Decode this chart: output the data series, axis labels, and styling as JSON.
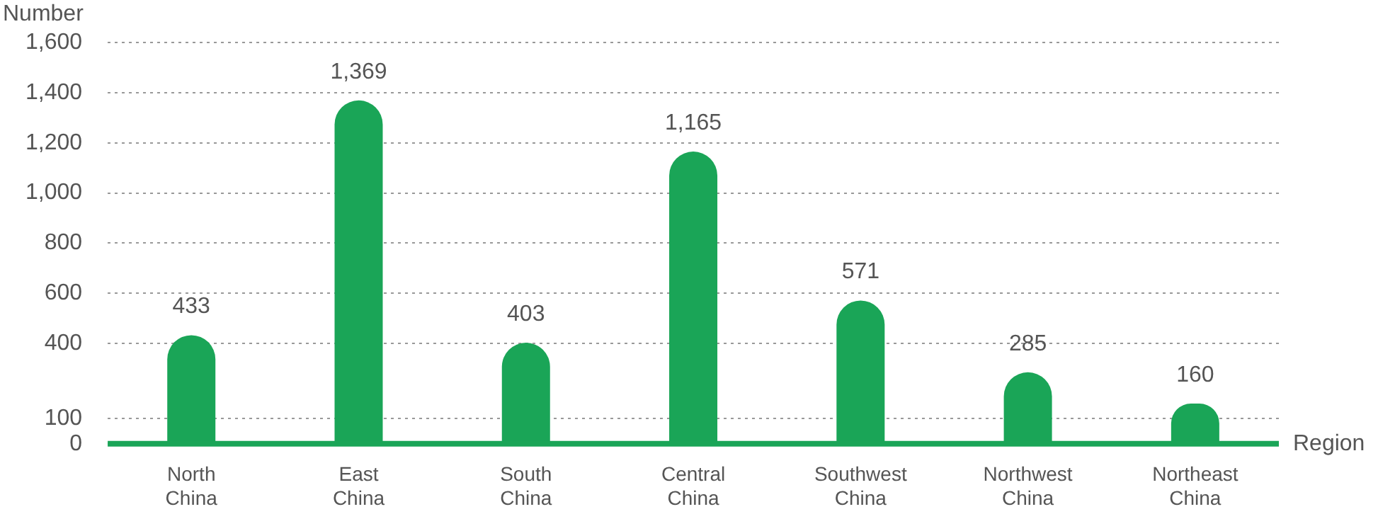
{
  "chart_data": {
    "type": "bar",
    "xlabel": "Region",
    "ylabel": "Number",
    "categories": [
      "North China",
      "East China",
      "South China",
      "Central China",
      "Southwest China",
      "Northwest China",
      "Northeast China"
    ],
    "values": [
      433,
      1369,
      403,
      1165,
      571,
      285,
      160
    ],
    "value_labels": [
      "433",
      "1,369",
      "403",
      "1,165",
      "571",
      "285",
      "160"
    ],
    "color": "#1aa557",
    "ylim": [
      0,
      1600
    ],
    "yticks": [
      0,
      100,
      400,
      600,
      800,
      {
        "value": 1000,
        "label": "1,000"
      },
      {
        "value": 1200,
        "label": "1,200"
      },
      {
        "value": 1400,
        "label": "1,400"
      },
      {
        "value": 1600,
        "label": "1,600"
      }
    ],
    "grid": "y",
    "legend": false
  }
}
